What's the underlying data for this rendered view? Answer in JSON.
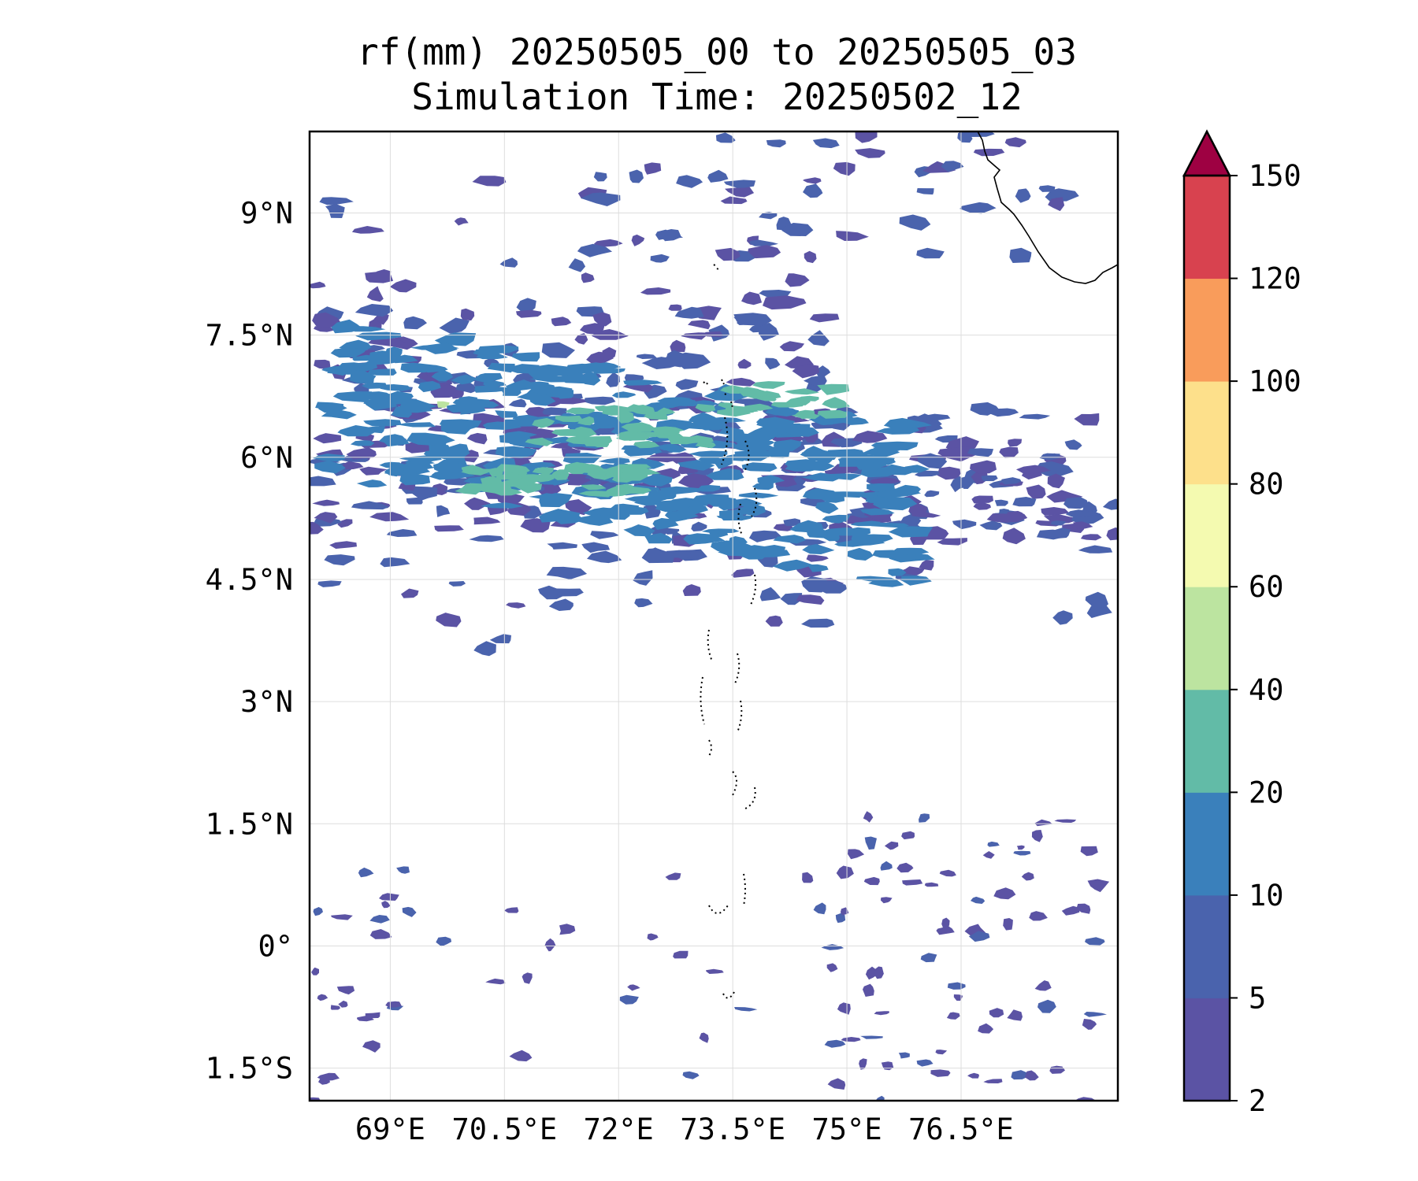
{
  "title": {
    "line1": "rf(mm) 20250505_00 to 20250505_03",
    "line2": "Simulation Time: 20250502_12"
  },
  "map": {
    "lon_range": [
      67.94,
      78.56
    ],
    "lat_range": [
      -1.9,
      10.0
    ],
    "gridlines": true,
    "x_ticks": [
      {
        "value": 69.0,
        "label": "69°E"
      },
      {
        "value": 70.5,
        "label": "70.5°E"
      },
      {
        "value": 72.0,
        "label": "72°E"
      },
      {
        "value": 73.5,
        "label": "73.5°E"
      },
      {
        "value": 75.0,
        "label": "75°E"
      },
      {
        "value": 76.5,
        "label": "76.5°E"
      }
    ],
    "y_ticks": [
      {
        "value": 9.0,
        "label": "9°N"
      },
      {
        "value": 7.5,
        "label": "7.5°N"
      },
      {
        "value": 6.0,
        "label": "6°N"
      },
      {
        "value": 4.5,
        "label": "4.5°N"
      },
      {
        "value": 3.0,
        "label": "3°N"
      },
      {
        "value": 1.5,
        "label": "1.5°N"
      },
      {
        "value": 0.0,
        "label": "0°"
      },
      {
        "value": -1.5,
        "label": "1.5°S"
      }
    ],
    "rain_regions": [
      {
        "name": "northern-rain-band",
        "lon": [
          67.94,
          78.56
        ],
        "lat": [
          3.6,
          10.0
        ]
      },
      {
        "name": "southern-rain-patches",
        "lon": [
          67.94,
          78.56
        ],
        "lat": [
          -1.9,
          1.6
        ]
      }
    ]
  },
  "colorbar": {
    "levels": [
      2,
      5,
      10,
      20,
      40,
      60,
      80,
      100,
      120,
      150
    ],
    "colors": [
      "#5b53a4",
      "#4a63ad",
      "#3a80bb",
      "#62bba7",
      "#bce4a0",
      "#f4fab0",
      "#fde08b",
      "#f99c5b",
      "#d8424f"
    ],
    "extend_color": "#9e0142",
    "extend": "max",
    "tick_labels": [
      "2",
      "5",
      "10",
      "20",
      "40",
      "60",
      "80",
      "100",
      "120",
      "150"
    ]
  }
}
